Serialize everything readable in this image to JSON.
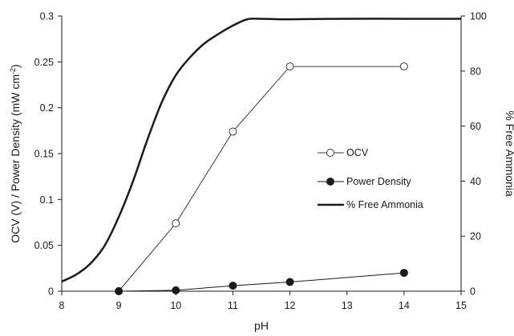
{
  "chart_data": {
    "type": "line",
    "xlabel": "pH",
    "ylabel": "OCV (V) / Power Density (mW cm",
    "ylabel_sup": "-2",
    "ylabel_close": ")",
    "y2label": "% Free Ammonia",
    "xlim": [
      8,
      15
    ],
    "ylim": [
      0,
      0.3
    ],
    "y2lim": [
      0,
      100
    ],
    "x_ticks": [
      "8",
      "9",
      "10",
      "11",
      "12",
      "13",
      "14",
      "15"
    ],
    "y_ticks": [
      "0",
      "0.05",
      "0.1",
      "0.15",
      "0.2",
      "0.25",
      "0.3"
    ],
    "y2_ticks": [
      "0",
      "20",
      "40",
      "60",
      "80",
      "100"
    ],
    "grid": false,
    "legend_position": "right",
    "series": [
      {
        "name": "OCV",
        "axis": "left",
        "marker": "open-circle",
        "color": "#3a3a3a",
        "x": [
          9,
          10,
          11,
          12,
          14
        ],
        "y": [
          0,
          0.074,
          0.174,
          0.245,
          0.245
        ]
      },
      {
        "name": "Power Density",
        "axis": "left",
        "marker": "filled-circle",
        "color": "#1a1a1a",
        "x": [
          9,
          10,
          11,
          12,
          14
        ],
        "y": [
          0,
          0.001,
          0.006,
          0.01,
          0.02
        ]
      },
      {
        "name": "% Free Ammonia",
        "axis": "right",
        "marker": "none",
        "color": "#1a1a1a",
        "x": [
          8,
          8.25,
          8.5,
          8.75,
          9,
          9.25,
          9.5,
          9.75,
          10,
          10.25,
          10.5,
          10.75,
          11,
          11.25,
          11.5,
          12,
          13,
          14,
          15
        ],
        "y": [
          3.5,
          6,
          10,
          16.5,
          27,
          40,
          55,
          68.5,
          78.5,
          85,
          90,
          93.5,
          96.5,
          98.8,
          99,
          98.8,
          99,
          99,
          99
        ]
      }
    ]
  }
}
